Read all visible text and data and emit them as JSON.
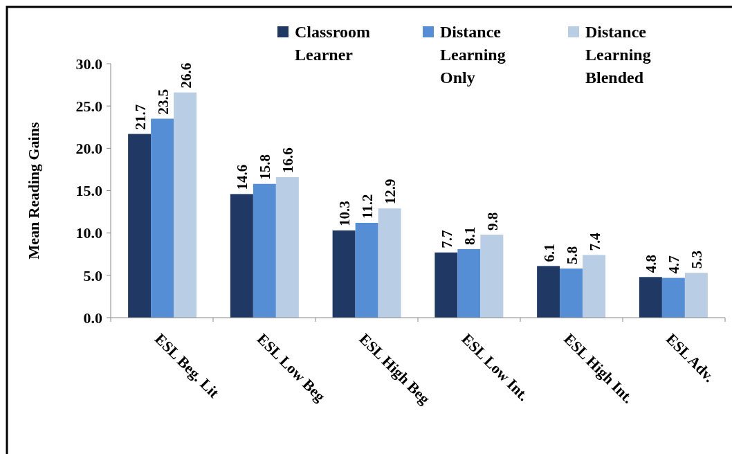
{
  "chart_data": {
    "type": "bar",
    "ylabel": "Mean Reading Gains",
    "categories": [
      "ESL Beg. Lit",
      "ESL Low Beg",
      "ESL High Beg",
      "ESL Low Int.",
      "ESL High Int.",
      "ESL Adv."
    ],
    "series": [
      {
        "name": "Classroom Learner",
        "color": "#1f3864",
        "values": [
          21.7,
          14.6,
          10.3,
          7.7,
          6.1,
          4.8
        ]
      },
      {
        "name": "Distance Learning Only",
        "color": "#558ed5",
        "values": [
          23.5,
          15.8,
          11.2,
          8.1,
          5.8,
          4.7
        ]
      },
      {
        "name": "Distance Learning Blended",
        "color": "#b9cde5",
        "values": [
          26.6,
          16.6,
          12.9,
          9.8,
          7.4,
          5.3
        ]
      }
    ],
    "ylim": [
      0,
      30
    ],
    "yticks": [
      {
        "value": 0,
        "label": "0.0"
      },
      {
        "value": 5,
        "label": "5.0"
      },
      {
        "value": 10,
        "label": "10.0"
      },
      {
        "value": 15,
        "label": "15.0"
      },
      {
        "value": 20,
        "label": "20.0"
      },
      {
        "value": 25,
        "label": "25.0"
      },
      {
        "value": 30,
        "label": "30.0"
      }
    ],
    "data_labels": true,
    "legend": "top right",
    "grid": false
  }
}
